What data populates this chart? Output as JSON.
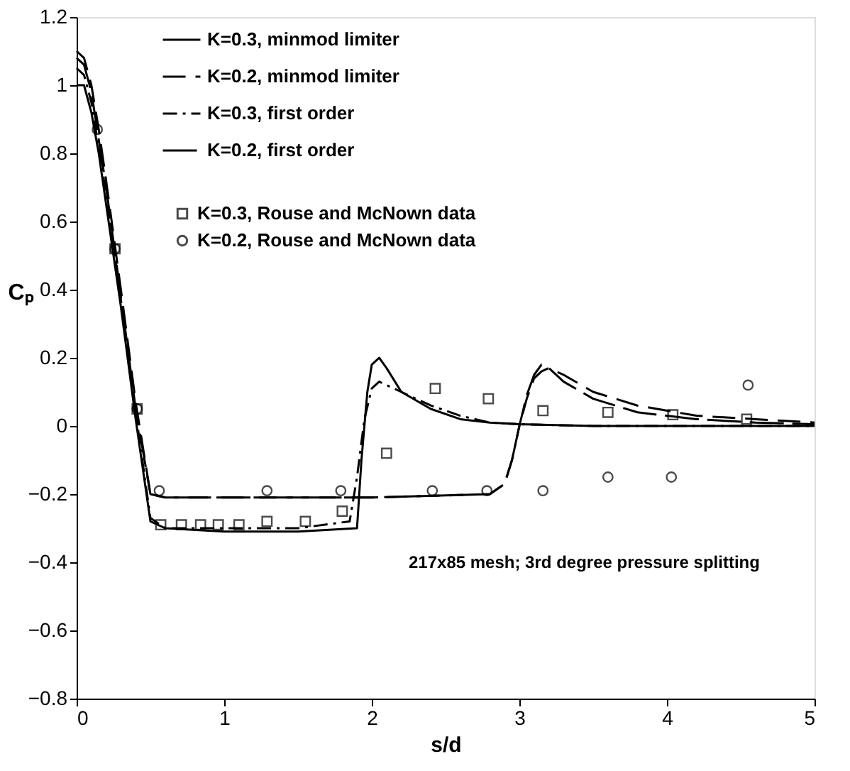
{
  "chart_data": {
    "type": "line",
    "xlabel": "s/d",
    "ylabel": "Cₚ",
    "xlim": [
      0,
      5
    ],
    "xticks": [
      0,
      1,
      2,
      3,
      4,
      5
    ],
    "ylim": [
      -0.8,
      1.2
    ],
    "yticks": [
      -0.8,
      -0.6,
      -0.4,
      -0.2,
      0,
      0.2,
      0.4,
      0.6,
      0.8,
      1,
      1.2
    ],
    "grid": false,
    "legend": "top",
    "annotations": [
      "217x85 mesh; 3rd degree pressure splitting"
    ],
    "series": [
      {
        "name": "K=0.3, minmod limiter",
        "line_style": "solid",
        "color": "#000000",
        "x": [
          0,
          0.05,
          0.1,
          0.15,
          0.2,
          0.3,
          0.4,
          0.5,
          0.6,
          1.0,
          1.5,
          1.9,
          1.93,
          1.97,
          2.0,
          2.05,
          2.1,
          2.2,
          2.4,
          2.6,
          2.8,
          3.0,
          3.5,
          4,
          4.5,
          5
        ],
        "values": [
          1.0,
          1.0,
          0.92,
          0.8,
          0.65,
          0.35,
          0.02,
          -0.28,
          -0.3,
          -0.31,
          -0.31,
          -0.3,
          -0.1,
          0.1,
          0.18,
          0.2,
          0.17,
          0.1,
          0.05,
          0.02,
          0.01,
          0.005,
          0,
          0,
          0,
          0
        ]
      },
      {
        "name": "K=0.2, minmod limiter",
        "line_style": "dashed",
        "color": "#000000",
        "x": [
          0,
          0.05,
          0.1,
          0.15,
          0.2,
          0.3,
          0.4,
          0.5,
          0.6,
          1.0,
          2.0,
          2.8,
          2.9,
          2.95,
          3.0,
          3.05,
          3.1,
          3.15,
          3.2,
          3.3,
          3.5,
          3.8,
          4.2,
          4.6,
          5
        ],
        "values": [
          1.1,
          1.08,
          1.0,
          0.87,
          0.72,
          0.4,
          0.07,
          -0.2,
          -0.21,
          -0.21,
          -0.21,
          -0.2,
          -0.17,
          -0.1,
          0.0,
          0.08,
          0.14,
          0.16,
          0.17,
          0.15,
          0.1,
          0.06,
          0.03,
          0.02,
          0.01
        ]
      },
      {
        "name": "K=0.3, first order",
        "line_style": "dashed",
        "color": "#000000",
        "x": [
          0,
          0.05,
          0.1,
          0.2,
          0.3,
          0.4,
          0.5,
          0.6,
          1.0,
          1.5,
          1.85,
          1.9,
          1.95,
          2.0,
          2.05,
          2.1,
          2.2,
          2.4,
          2.6,
          2.8,
          3.0,
          3.5,
          4,
          5
        ],
        "values": [
          1.05,
          1.03,
          0.95,
          0.68,
          0.37,
          0.04,
          -0.27,
          -0.3,
          -0.3,
          -0.3,
          -0.28,
          -0.15,
          0.02,
          0.11,
          0.13,
          0.12,
          0.1,
          0.06,
          0.03,
          0.01,
          0.005,
          0,
          0,
          0
        ]
      },
      {
        "name": "K=0.2, first order",
        "line_style": "dashed",
        "color": "#000000",
        "x": [
          0,
          0.05,
          0.1,
          0.2,
          0.3,
          0.4,
          0.5,
          0.6,
          1.0,
          2.0,
          2.8,
          2.9,
          2.95,
          3.0,
          3.05,
          3.1,
          3.15,
          3.2,
          3.3,
          3.5,
          3.8,
          4.2,
          4.6,
          5
        ],
        "values": [
          1.08,
          1.06,
          0.98,
          0.7,
          0.38,
          0.05,
          -0.2,
          -0.21,
          -0.21,
          -0.21,
          -0.2,
          -0.17,
          -0.1,
          0.0,
          0.09,
          0.15,
          0.18,
          0.17,
          0.13,
          0.08,
          0.04,
          0.02,
          0.01,
          0.005
        ]
      },
      {
        "name": "K=0.3, Rouse and McNown data",
        "type": "scatter",
        "marker": "square",
        "color": "#000000",
        "x": [
          0.26,
          0.41,
          0.57,
          0.71,
          0.84,
          0.96,
          1.1,
          1.29,
          1.55,
          1.8,
          2.1,
          2.43,
          2.79,
          3.16,
          3.6,
          4.04,
          4.54
        ],
        "values": [
          0.52,
          0.05,
          -0.29,
          -0.29,
          -0.29,
          -0.29,
          -0.29,
          -0.28,
          -0.28,
          -0.25,
          -0.08,
          0.11,
          0.08,
          0.045,
          0.04,
          0.033,
          0.02
        ]
      },
      {
        "name": "K=0.2, Rouse and McNown data",
        "type": "scatter",
        "marker": "circle",
        "color": "#000000",
        "x": [
          0.14,
          0.26,
          0.41,
          0.56,
          1.29,
          1.79,
          2.41,
          2.78,
          3.16,
          3.6,
          4.03,
          4.55
        ],
        "values": [
          0.87,
          0.52,
          0.05,
          -0.19,
          -0.19,
          -0.19,
          -0.19,
          -0.19,
          -0.19,
          -0.15,
          -0.15,
          0.12
        ]
      }
    ]
  }
}
